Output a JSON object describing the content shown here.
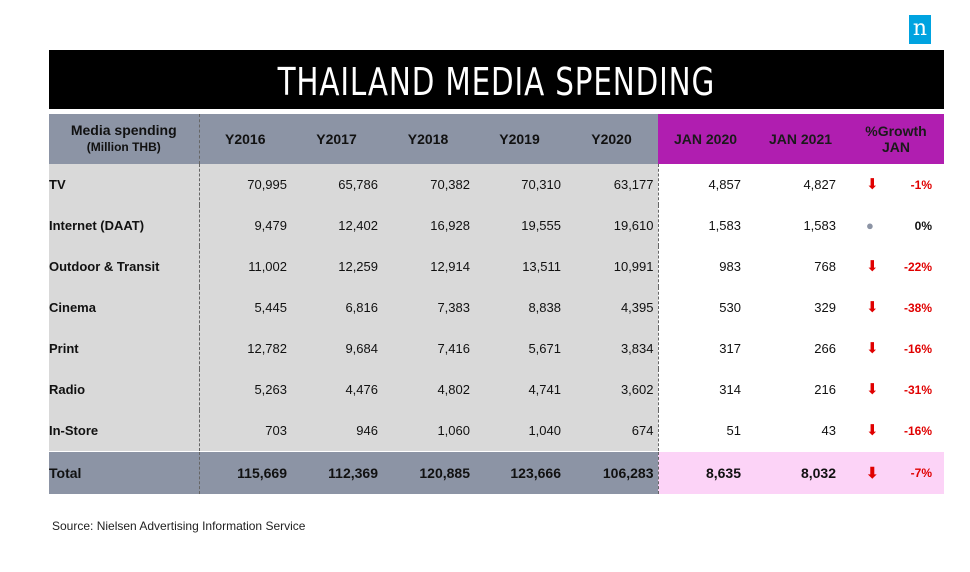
{
  "logo": "n",
  "title": "THAILAND MEDIA SPENDING",
  "header": {
    "col0_line1": "Media spending",
    "col0_line2": "(Million THB)",
    "years": [
      "Y2016",
      "Y2017",
      "Y2018",
      "Y2019",
      "Y2020"
    ],
    "jan": [
      "JAN 2020",
      "JAN 2021"
    ],
    "growth_line1": "%Growth",
    "growth_line2": "JAN"
  },
  "rows": [
    {
      "label": "TV",
      "years": [
        "70,995",
        "65,786",
        "70,382",
        "70,310",
        "63,177"
      ],
      "jan": [
        "4,857",
        "4,827"
      ],
      "trend": "down",
      "growth": "-1%"
    },
    {
      "label": "Internet (DAAT)",
      "years": [
        "9,479",
        "12,402",
        "16,928",
        "19,555",
        "19,610"
      ],
      "jan": [
        "1,583",
        "1,583"
      ],
      "trend": "flat",
      "growth": "0%"
    },
    {
      "label": "Outdoor & Transit",
      "years": [
        "11,002",
        "12,259",
        "12,914",
        "13,511",
        "10,991"
      ],
      "jan": [
        "983",
        "768"
      ],
      "trend": "down",
      "growth": "-22%"
    },
    {
      "label": "Cinema",
      "years": [
        "5,445",
        "6,816",
        "7,383",
        "8,838",
        "4,395"
      ],
      "jan": [
        "530",
        "329"
      ],
      "trend": "down",
      "growth": "-38%"
    },
    {
      "label": "Print",
      "years": [
        "12,782",
        "9,684",
        "7,416",
        "5,671",
        "3,834"
      ],
      "jan": [
        "317",
        "266"
      ],
      "trend": "down",
      "growth": "-16%"
    },
    {
      "label": "Radio",
      "years": [
        "5,263",
        "4,476",
        "4,802",
        "4,741",
        "3,602"
      ],
      "jan": [
        "314",
        "216"
      ],
      "trend": "down",
      "growth": "-31%"
    },
    {
      "label": "In-Store",
      "years": [
        "703",
        "946",
        "1,060",
        "1,040",
        "674"
      ],
      "jan": [
        "51",
        "43"
      ],
      "trend": "down",
      "growth": "-16%"
    }
  ],
  "total": {
    "label": "Total",
    "years": [
      "115,669",
      "112,369",
      "120,885",
      "123,666",
      "106,283"
    ],
    "jan": [
      "8,635",
      "8,032"
    ],
    "trend": "down",
    "growth": "-7%"
  },
  "source": "Source: Nielsen Advertising Information Service",
  "colors": {
    "title_bg": "#000000",
    "header_bg": "#8c94a5",
    "jan_header_bg": "#b01eb0",
    "total_jan_bg": "#fcd3f7",
    "down_arrow": "#e00000",
    "body_bg": "#d9d9d9"
  },
  "chart_data": {
    "type": "table",
    "title": "THAILAND MEDIA SPENDING",
    "columns": [
      "Media spending (Million THB)",
      "Y2016",
      "Y2017",
      "Y2018",
      "Y2019",
      "Y2020",
      "JAN 2020",
      "JAN 2021",
      "%Growth JAN"
    ],
    "rows": [
      [
        "TV",
        70995,
        65786,
        70382,
        70310,
        63177,
        4857,
        4827,
        "-1%"
      ],
      [
        "Internet (DAAT)",
        9479,
        12402,
        16928,
        19555,
        19610,
        1583,
        1583,
        "0%"
      ],
      [
        "Outdoor & Transit",
        11002,
        12259,
        12914,
        13511,
        10991,
        983,
        768,
        "-22%"
      ],
      [
        "Cinema",
        5445,
        6816,
        7383,
        8838,
        4395,
        530,
        329,
        "-38%"
      ],
      [
        "Print",
        12782,
        9684,
        7416,
        5671,
        3834,
        317,
        266,
        "-16%"
      ],
      [
        "Radio",
        5263,
        4476,
        4802,
        4741,
        3602,
        314,
        216,
        "-31%"
      ],
      [
        "In-Store",
        703,
        946,
        1060,
        1040,
        674,
        51,
        43,
        "-16%"
      ],
      [
        "Total",
        115669,
        112369,
        120885,
        123666,
        106283,
        8635,
        8032,
        "-7%"
      ]
    ]
  }
}
